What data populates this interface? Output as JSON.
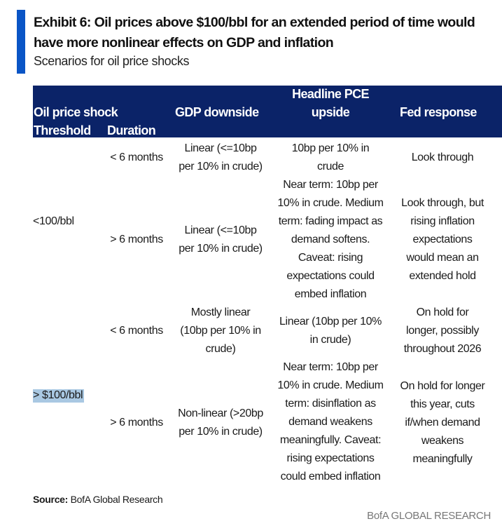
{
  "exhibit": {
    "title": "Exhibit 6: Oil prices above $100/bbl for an extended period of time would have more nonlinear effects on GDP and inflation",
    "subtitle": "Scenarios for oil price shocks",
    "accent_color": "#0a55c6",
    "header_color": "#0b2368"
  },
  "table": {
    "headers": {
      "oil_price_shock": "Oil price shock",
      "threshold": "Threshold",
      "duration": "Duration",
      "gdp": "GDP downside",
      "pce": "Headline PCE\nupside",
      "fed": "Fed response"
    },
    "groups": [
      {
        "threshold": "<100/bbl",
        "highlighted": false
      },
      {
        "threshold": "> $100/bbl",
        "highlighted": true
      }
    ],
    "rows": [
      {
        "duration": "< 6 months",
        "gdp": "Linear (<=10bp\nper 10% in crude)",
        "pce": "10bp per 10% in\ncrude",
        "fed": "Look through"
      },
      {
        "duration": "> 6 months",
        "gdp": "Linear (<=10bp\nper 10% in crude)",
        "pce": "Near term: 10bp per\n10% in crude. Medium\nterm: fading impact as\ndemand softens.\nCaveat: rising\nexpectations could\nembed inflation",
        "fed": "Look through, but\nrising inflation\nexpectations\nwould mean an\nextended hold"
      },
      {
        "duration": "< 6 months",
        "gdp": "Mostly linear\n(10bp per 10% in\ncrude)",
        "pce": "Linear (10bp per 10%\nin crude)",
        "fed": "On hold for\nlonger, possibly\nthroughout 2026"
      },
      {
        "duration": "> 6 months",
        "gdp": "Non-linear (>20bp\nper 10% in crude)",
        "pce": "Near term: 10bp per\n10% in crude. Medium\nterm: disinflation as\ndemand weakens\nmeaningfully. Caveat:\nrising expectations\ncould embed inflation",
        "fed": "On hold for longer\nthis year, cuts\nif/when demand\nweakens\nmeaningfully"
      }
    ]
  },
  "footer": {
    "source_label": "Source:",
    "source_text": " BofA Global Research",
    "brand": "BofA GLOBAL RESEARCH"
  }
}
